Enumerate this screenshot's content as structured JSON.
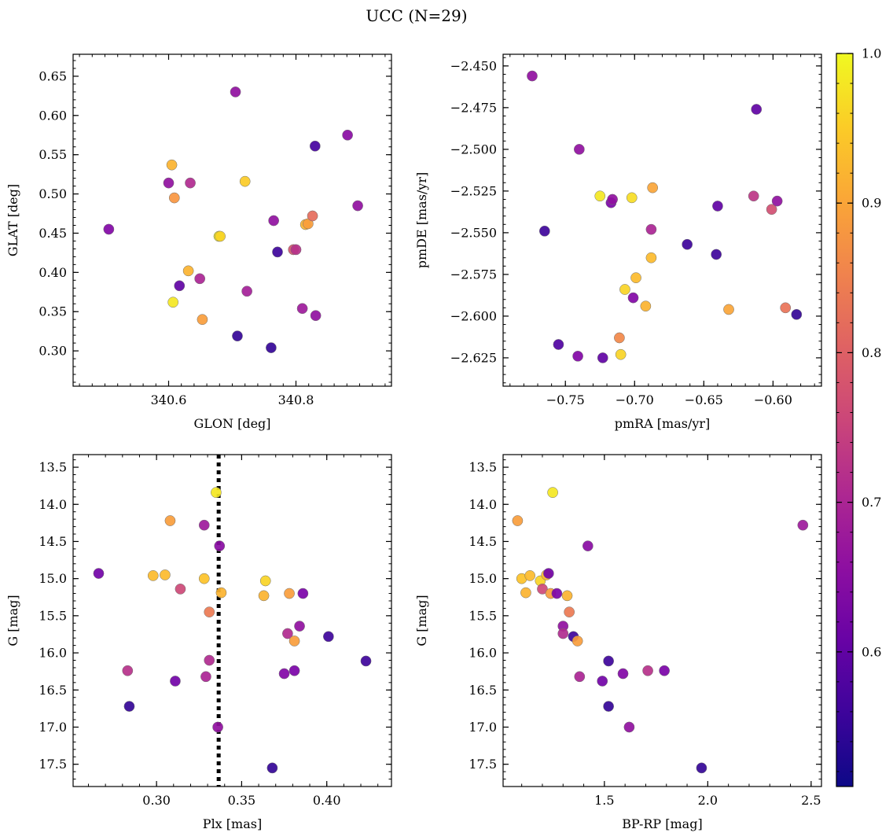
{
  "suptitle": "UCC (N=29)",
  "colorbar": {
    "colormap": "plasma",
    "range": [
      0.51,
      1.0
    ],
    "ticks": [
      0.6,
      0.7,
      0.8,
      0.9,
      1.0
    ],
    "tick_labels": [
      "0.6",
      "0.7",
      "0.8",
      "0.9",
      "1.0"
    ]
  },
  "chart_data": [
    {
      "type": "scatter",
      "xlabel": "GLON [deg]",
      "ylabel": "GLAT [deg]",
      "xlim": [
        340.45,
        340.95
      ],
      "ylim": [
        0.255,
        0.678
      ],
      "y_inverted": false,
      "xticks": [
        340.6,
        340.8
      ],
      "xtick_labels": [
        "340.6",
        "340.8"
      ],
      "xminor_step": 0.02,
      "yticks": [
        0.3,
        0.35,
        0.4,
        0.45,
        0.5,
        0.55,
        0.6,
        0.65
      ],
      "ytick_labels": [
        "0.30",
        "0.35",
        "0.40",
        "0.45",
        "0.50",
        "0.55",
        "0.60",
        "0.65"
      ],
      "yminor_step": 0.01,
      "points": [
        {
          "x": 340.506,
          "y": 0.455,
          "c": 0.64
        },
        {
          "x": 340.6,
          "y": 0.514,
          "c": 0.66
        },
        {
          "x": 340.605,
          "y": 0.537,
          "c": 0.92
        },
        {
          "x": 340.607,
          "y": 0.362,
          "c": 0.98
        },
        {
          "x": 340.609,
          "y": 0.495,
          "c": 0.88
        },
        {
          "x": 340.617,
          "y": 0.383,
          "c": 0.6
        },
        {
          "x": 340.631,
          "y": 0.402,
          "c": 0.92
        },
        {
          "x": 340.634,
          "y": 0.514,
          "c": 0.71
        },
        {
          "x": 340.649,
          "y": 0.392,
          "c": 0.7
        },
        {
          "x": 340.653,
          "y": 0.34,
          "c": 0.89
        },
        {
          "x": 340.679,
          "y": 0.446,
          "c": 0.99
        },
        {
          "x": 340.681,
          "y": 0.446,
          "c": 0.96
        },
        {
          "x": 340.705,
          "y": 0.63,
          "c": 0.66
        },
        {
          "x": 340.708,
          "y": 0.319,
          "c": 0.55
        },
        {
          "x": 340.72,
          "y": 0.516,
          "c": 0.95
        },
        {
          "x": 340.723,
          "y": 0.376,
          "c": 0.69
        },
        {
          "x": 340.761,
          "y": 0.304,
          "c": 0.55
        },
        {
          "x": 340.765,
          "y": 0.466,
          "c": 0.66
        },
        {
          "x": 340.771,
          "y": 0.426,
          "c": 0.56
        },
        {
          "x": 340.796,
          "y": 0.429,
          "c": 0.78
        },
        {
          "x": 340.8,
          "y": 0.429,
          "c": 0.72
        },
        {
          "x": 340.81,
          "y": 0.354,
          "c": 0.68
        },
        {
          "x": 340.815,
          "y": 0.461,
          "c": 0.92
        },
        {
          "x": 340.819,
          "y": 0.462,
          "c": 0.89
        },
        {
          "x": 340.826,
          "y": 0.472,
          "c": 0.82
        },
        {
          "x": 340.83,
          "y": 0.561,
          "c": 0.57
        },
        {
          "x": 340.831,
          "y": 0.345,
          "c": 0.66
        },
        {
          "x": 340.881,
          "y": 0.575,
          "c": 0.65
        },
        {
          "x": 340.897,
          "y": 0.485,
          "c": 0.66
        }
      ]
    },
    {
      "type": "scatter",
      "xlabel": "pmRA [mas/yr]",
      "ylabel": "pmDE [mas/yr]",
      "xlim": [
        -0.795,
        -0.565
      ],
      "ylim": [
        -2.642,
        -2.443
      ],
      "y_inverted": false,
      "xticks": [
        -0.75,
        -0.7,
        -0.65,
        -0.6
      ],
      "xtick_labels": [
        "−0.75",
        "−0.70",
        "−0.65",
        "−0.60"
      ],
      "xminor_step": 0.01,
      "yticks": [
        -2.625,
        -2.6,
        -2.575,
        -2.55,
        -2.525,
        -2.5,
        -2.475,
        -2.45
      ],
      "ytick_labels": [
        "−2.625",
        "−2.600",
        "−2.575",
        "−2.550",
        "−2.525",
        "−2.500",
        "−2.475",
        "−2.450"
      ],
      "yminor_step": 0.005,
      "points": [
        {
          "x": -0.774,
          "y": -2.456,
          "c": 0.66
        },
        {
          "x": -0.765,
          "y": -2.549,
          "c": 0.56
        },
        {
          "x": -0.755,
          "y": -2.617,
          "c": 0.58
        },
        {
          "x": -0.741,
          "y": -2.624,
          "c": 0.64
        },
        {
          "x": -0.74,
          "y": -2.5,
          "c": 0.66
        },
        {
          "x": -0.725,
          "y": -2.528,
          "c": 0.98
        },
        {
          "x": -0.723,
          "y": -2.625,
          "c": 0.6
        },
        {
          "x": -0.717,
          "y": -2.532,
          "c": 0.63
        },
        {
          "x": -0.716,
          "y": -2.53,
          "c": 0.66
        },
        {
          "x": -0.711,
          "y": -2.613,
          "c": 0.86
        },
        {
          "x": -0.71,
          "y": -2.623,
          "c": 0.96
        },
        {
          "x": -0.707,
          "y": -2.584,
          "c": 0.96
        },
        {
          "x": -0.702,
          "y": -2.529,
          "c": 0.97
        },
        {
          "x": -0.701,
          "y": -2.589,
          "c": 0.64
        },
        {
          "x": -0.699,
          "y": -2.577,
          "c": 0.93
        },
        {
          "x": -0.692,
          "y": -2.594,
          "c": 0.92
        },
        {
          "x": -0.688,
          "y": -2.548,
          "c": 0.7
        },
        {
          "x": -0.688,
          "y": -2.565,
          "c": 0.93
        },
        {
          "x": -0.687,
          "y": -2.523,
          "c": 0.9
        },
        {
          "x": -0.662,
          "y": -2.557,
          "c": 0.56
        },
        {
          "x": -0.641,
          "y": -2.563,
          "c": 0.56
        },
        {
          "x": -0.64,
          "y": -2.534,
          "c": 0.6
        },
        {
          "x": -0.632,
          "y": -2.596,
          "c": 0.9
        },
        {
          "x": -0.614,
          "y": -2.528,
          "c": 0.73
        },
        {
          "x": -0.612,
          "y": -2.476,
          "c": 0.6
        },
        {
          "x": -0.601,
          "y": -2.536,
          "c": 0.77
        },
        {
          "x": -0.597,
          "y": -2.531,
          "c": 0.66
        },
        {
          "x": -0.591,
          "y": -2.595,
          "c": 0.83
        },
        {
          "x": -0.583,
          "y": -2.599,
          "c": 0.55
        }
      ]
    },
    {
      "type": "scatter",
      "xlabel": "Plx [mas]",
      "ylabel": "G [mag]",
      "xlim": [
        0.251,
        0.438
      ],
      "ylim": [
        17.8,
        13.33
      ],
      "y_inverted": true,
      "xticks": [
        0.3,
        0.35,
        0.4
      ],
      "xtick_labels": [
        "0.30",
        "0.35",
        "0.40"
      ],
      "xminor_step": 0.01,
      "yticks": [
        13.5,
        14.0,
        14.5,
        15.0,
        15.5,
        16.0,
        16.5,
        17.0,
        17.5
      ],
      "ytick_labels": [
        "13.5",
        "14.0",
        "14.5",
        "15.0",
        "15.5",
        "16.0",
        "16.5",
        "17.0",
        "17.5"
      ],
      "yminor_step": 0.1,
      "vline": {
        "x": 0.3365,
        "style": "dotted",
        "color": "#000000"
      },
      "points": [
        {
          "x": 0.266,
          "y": 14.93,
          "c": 0.62
        },
        {
          "x": 0.283,
          "y": 16.24,
          "c": 0.72
        },
        {
          "x": 0.284,
          "y": 16.72,
          "c": 0.55
        },
        {
          "x": 0.298,
          "y": 14.96,
          "c": 0.93
        },
        {
          "x": 0.305,
          "y": 14.95,
          "c": 0.93
        },
        {
          "x": 0.308,
          "y": 14.22,
          "c": 0.89
        },
        {
          "x": 0.311,
          "y": 16.38,
          "c": 0.62
        },
        {
          "x": 0.314,
          "y": 15.14,
          "c": 0.76
        },
        {
          "x": 0.328,
          "y": 14.28,
          "c": 0.68
        },
        {
          "x": 0.328,
          "y": 15.0,
          "c": 0.94
        },
        {
          "x": 0.329,
          "y": 16.32,
          "c": 0.7
        },
        {
          "x": 0.331,
          "y": 15.45,
          "c": 0.84
        },
        {
          "x": 0.331,
          "y": 16.1,
          "c": 0.71
        },
        {
          "x": 0.335,
          "y": 13.84,
          "c": 0.98
        },
        {
          "x": 0.336,
          "y": 17.0,
          "c": 0.66
        },
        {
          "x": 0.337,
          "y": 14.56,
          "c": 0.65
        },
        {
          "x": 0.338,
          "y": 15.19,
          "c": 0.92
        },
        {
          "x": 0.363,
          "y": 15.23,
          "c": 0.92
        },
        {
          "x": 0.364,
          "y": 15.03,
          "c": 0.96
        },
        {
          "x": 0.368,
          "y": 17.55,
          "c": 0.55
        },
        {
          "x": 0.375,
          "y": 16.28,
          "c": 0.64
        },
        {
          "x": 0.377,
          "y": 15.74,
          "c": 0.71
        },
        {
          "x": 0.378,
          "y": 15.2,
          "c": 0.89
        },
        {
          "x": 0.381,
          "y": 16.24,
          "c": 0.63
        },
        {
          "x": 0.381,
          "y": 15.84,
          "c": 0.89
        },
        {
          "x": 0.384,
          "y": 15.64,
          "c": 0.66
        },
        {
          "x": 0.386,
          "y": 15.2,
          "c": 0.63
        },
        {
          "x": 0.401,
          "y": 15.78,
          "c": 0.56
        },
        {
          "x": 0.423,
          "y": 16.11,
          "c": 0.56
        }
      ]
    },
    {
      "type": "scatter",
      "xlabel": "BP-RP [mag]",
      "ylabel": "G [mag]",
      "xlim": [
        1.01,
        2.55
      ],
      "ylim": [
        17.8,
        13.33
      ],
      "y_inverted": true,
      "xticks": [
        1.5,
        2.0,
        2.5
      ],
      "xtick_labels": [
        "1.5",
        "2.0",
        "2.5"
      ],
      "xminor_step": 0.1,
      "yticks": [
        13.5,
        14.0,
        14.5,
        15.0,
        15.5,
        16.0,
        16.5,
        17.0,
        17.5
      ],
      "ytick_labels": [
        "13.5",
        "14.0",
        "14.5",
        "15.0",
        "15.5",
        "16.0",
        "16.5",
        "17.0",
        "17.5"
      ],
      "yminor_step": 0.1,
      "points": [
        {
          "x": 1.08,
          "y": 14.22,
          "c": 0.89
        },
        {
          "x": 1.1,
          "y": 15.0,
          "c": 0.94
        },
        {
          "x": 1.12,
          "y": 15.19,
          "c": 0.92
        },
        {
          "x": 1.14,
          "y": 14.96,
          "c": 0.93
        },
        {
          "x": 1.19,
          "y": 15.03,
          "c": 0.96
        },
        {
          "x": 1.2,
          "y": 15.14,
          "c": 0.76
        },
        {
          "x": 1.22,
          "y": 14.95,
          "c": 0.93
        },
        {
          "x": 1.23,
          "y": 14.93,
          "c": 0.62
        },
        {
          "x": 1.24,
          "y": 15.2,
          "c": 0.89
        },
        {
          "x": 1.25,
          "y": 13.84,
          "c": 0.98
        },
        {
          "x": 1.27,
          "y": 15.2,
          "c": 0.63
        },
        {
          "x": 1.3,
          "y": 15.64,
          "c": 0.66
        },
        {
          "x": 1.3,
          "y": 15.74,
          "c": 0.71
        },
        {
          "x": 1.32,
          "y": 15.23,
          "c": 0.92
        },
        {
          "x": 1.33,
          "y": 15.45,
          "c": 0.84
        },
        {
          "x": 1.35,
          "y": 15.78,
          "c": 0.56
        },
        {
          "x": 1.37,
          "y": 15.84,
          "c": 0.89
        },
        {
          "x": 1.38,
          "y": 16.32,
          "c": 0.7
        },
        {
          "x": 1.42,
          "y": 14.56,
          "c": 0.65
        },
        {
          "x": 1.49,
          "y": 16.38,
          "c": 0.62
        },
        {
          "x": 1.52,
          "y": 16.11,
          "c": 0.56
        },
        {
          "x": 1.52,
          "y": 16.72,
          "c": 0.55
        },
        {
          "x": 1.59,
          "y": 16.28,
          "c": 0.64
        },
        {
          "x": 1.62,
          "y": 17.0,
          "c": 0.66
        },
        {
          "x": 1.71,
          "y": 16.24,
          "c": 0.72
        },
        {
          "x": 1.79,
          "y": 16.24,
          "c": 0.63
        },
        {
          "x": 1.97,
          "y": 17.55,
          "c": 0.55
        },
        {
          "x": 2.46,
          "y": 14.28,
          "c": 0.68
        }
      ]
    }
  ]
}
